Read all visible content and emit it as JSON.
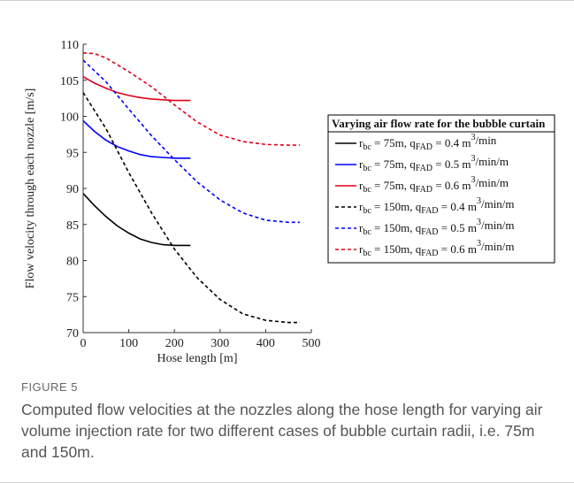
{
  "figure_label": "FIGURE 5",
  "caption": "Computed flow velocities at the nozzles along the hose length for varying air volume injection rate for two different cases of bubble curtain radii, i.e. 75m and 150m.",
  "colors": {
    "black": "#000000",
    "blue": "#0000ff",
    "red": "#e0001a"
  },
  "chart_data": {
    "type": "line",
    "xlabel": "Hose length [m]",
    "ylabel": "Flow velocity through each nozzle [m/s]",
    "xlim": [
      0,
      500
    ],
    "ylim": [
      70,
      110
    ],
    "xticks": [
      0,
      100,
      200,
      300,
      400,
      500
    ],
    "yticks": [
      70,
      75,
      80,
      85,
      90,
      95,
      100,
      105,
      110
    ],
    "grid": false,
    "legend_title": "Varying air flow rate for the bubble curtain",
    "legend_position": "right",
    "series": [
      {
        "name": "r_bc = 75m, q_FAD = 0.4 m^3/min",
        "color": "#000000",
        "dash": "solid",
        "label_parts": [
          "r",
          "bc",
          " = 75m, q",
          "FAD",
          " = 0.4 m",
          "3",
          "/min"
        ],
        "x": [
          0,
          25,
          50,
          75,
          100,
          125,
          150,
          175,
          200,
          235
        ],
        "y": [
          89.3,
          87.6,
          86.1,
          84.8,
          83.8,
          83.0,
          82.5,
          82.2,
          82.1,
          82.1
        ]
      },
      {
        "name": "r_bc = 75m, q_FAD = 0.5 m^3/min/m",
        "color": "#0000ff",
        "dash": "solid",
        "label_parts": [
          "r",
          "bc",
          " = 75m, q",
          "FAD",
          " = 0.5 m",
          "3",
          "/min/m"
        ],
        "x": [
          0,
          25,
          50,
          75,
          100,
          125,
          150,
          175,
          200,
          235
        ],
        "y": [
          99.4,
          97.9,
          96.7,
          95.8,
          95.2,
          94.7,
          94.4,
          94.3,
          94.2,
          94.2
        ]
      },
      {
        "name": "r_bc = 75m, q_FAD = 0.6 m^3/min/m",
        "color": "#e0001a",
        "dash": "solid",
        "label_parts": [
          "r",
          "bc",
          " = 75m, q",
          "FAD",
          " = 0.6 m",
          "3",
          "/min/m"
        ],
        "x": [
          0,
          25,
          50,
          75,
          100,
          125,
          150,
          175,
          200,
          235
        ],
        "y": [
          105.5,
          104.6,
          103.9,
          103.3,
          102.9,
          102.6,
          102.4,
          102.3,
          102.2,
          102.2
        ]
      },
      {
        "name": "r_bc = 150m, q_FAD = 0.4 m^3/min/m",
        "color": "#000000",
        "dash": "dashed",
        "label_parts": [
          "r",
          "bc",
          " = 150m, q",
          "FAD",
          " = 0.4 m",
          "3",
          "/min/m"
        ],
        "x": [
          0,
          50,
          100,
          150,
          200,
          250,
          300,
          350,
          400,
          450,
          475
        ],
        "y": [
          103.3,
          98.3,
          92.2,
          86.6,
          81.6,
          77.6,
          74.6,
          72.6,
          71.7,
          71.4,
          71.4
        ]
      },
      {
        "name": "r_bc = 150m, q_FAD = 0.5 m^3/min/m",
        "color": "#0000ff",
        "dash": "dashed",
        "label_parts": [
          "r",
          "bc",
          " = 150m, q",
          "FAD",
          " = 0.5 m",
          "3",
          "/min/m"
        ],
        "x": [
          0,
          50,
          100,
          150,
          200,
          250,
          300,
          350,
          400,
          450,
          475
        ],
        "y": [
          107.8,
          104.8,
          101.0,
          97.3,
          94.0,
          90.9,
          88.4,
          86.6,
          85.6,
          85.3,
          85.3
        ]
      },
      {
        "name": "r_bc = 150m, q_FAD = 0.6 m^3/min/m",
        "color": "#e0001a",
        "dash": "dashed",
        "label_parts": [
          "r",
          "bc",
          " = 150m, q",
          "FAD",
          " = 0.6 m",
          "3",
          "/min/m"
        ],
        "x": [
          0,
          25,
          50,
          100,
          150,
          200,
          250,
          300,
          350,
          400,
          450,
          475
        ],
        "y": [
          108.8,
          108.7,
          108.1,
          106.2,
          104.1,
          101.6,
          99.2,
          97.4,
          96.5,
          96.1,
          96.0,
          96.0
        ]
      }
    ]
  }
}
